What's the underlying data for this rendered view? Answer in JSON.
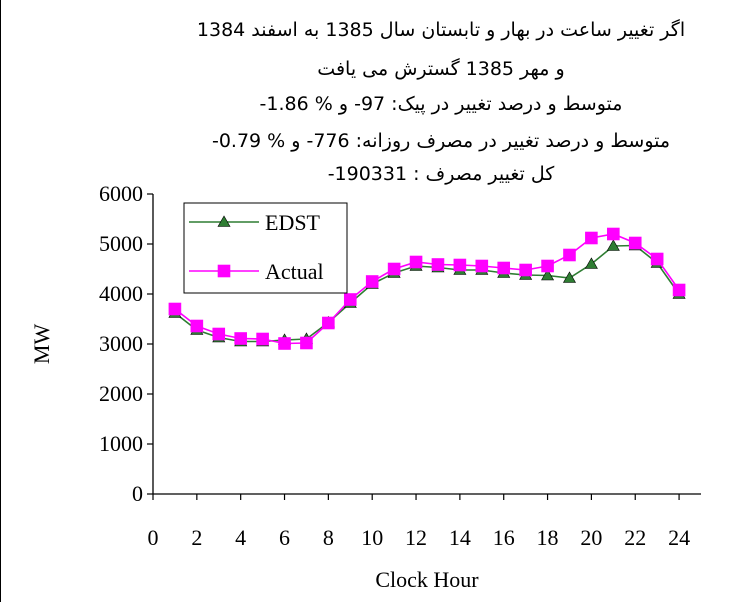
{
  "chart_data": {
    "type": "line",
    "annotation_lines": [
      "اگر تغییر ساعت در بهار و تابستان سال 1385 به اسفند 1384",
      "و مهر 1385 گسترش می یافت",
      "متوسط و درصد تغییر در پیک: 97- و % 1.86-",
      "متوسط و درصد تغییر در مصرف روزانه: 776- و % 0.79-",
      "کل تغییر مصرف :  190331-"
    ],
    "xlabel": "Clock Hour",
    "ylabel": "MW",
    "xlim": [
      0,
      25
    ],
    "ylim": [
      0,
      6000
    ],
    "x_ticks": [
      0,
      2,
      4,
      6,
      8,
      10,
      12,
      14,
      16,
      18,
      20,
      22,
      24
    ],
    "y_ticks": [
      0,
      1000,
      2000,
      3000,
      4000,
      5000,
      6000
    ],
    "legend_position": "top-left",
    "grid": false,
    "x": [
      1,
      2,
      3,
      4,
      5,
      6,
      7,
      8,
      9,
      10,
      11,
      12,
      13,
      14,
      15,
      16,
      17,
      18,
      19,
      20,
      21,
      22,
      23,
      24
    ],
    "series": [
      {
        "name": "EDST",
        "color": "#2e7d32",
        "marker": "triangle",
        "values": [
          3620,
          3280,
          3130,
          3050,
          3050,
          3080,
          3100,
          3430,
          3820,
          4200,
          4420,
          4560,
          4530,
          4480,
          4480,
          4420,
          4380,
          4370,
          4320,
          4600,
          4960,
          4970,
          4620,
          4000
        ]
      },
      {
        "name": "Actual",
        "color": "#ff00ff",
        "marker": "square",
        "values": [
          3700,
          3360,
          3200,
          3110,
          3100,
          3010,
          3020,
          3420,
          3890,
          4250,
          4500,
          4640,
          4590,
          4580,
          4560,
          4520,
          4480,
          4560,
          4780,
          5120,
          5200,
          5020,
          4700,
          4080
        ]
      }
    ]
  }
}
